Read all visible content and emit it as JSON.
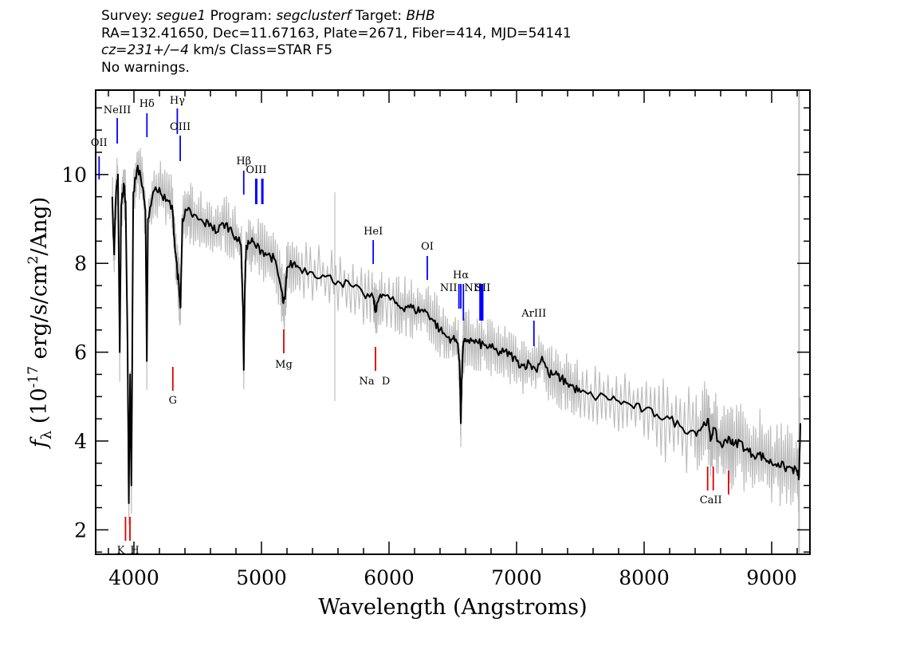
{
  "header": {
    "line1": {
      "survey_label": "Survey: ",
      "survey": "segue1",
      "program_label": " Program: ",
      "program": "segclusterf",
      "target_label": " Target: ",
      "target": "BHB"
    },
    "line2": "RA=132.41650, Dec=11.67163, Plate=2671, Fiber=414, MJD=54141",
    "line3": {
      "cz": "cz=231+/−4",
      "rest": " km/s Class=STAR F5"
    },
    "line4": "No warnings."
  },
  "chart_data": {
    "type": "line",
    "xlabel": "Wavelength (Angstroms)",
    "ylabel": "f_λ (10^-17 erg/s/cm^2/Ang)",
    "xlim": [
      3700,
      9300
    ],
    "ylim": [
      1.45,
      11.9
    ],
    "x_ticks": [
      4000,
      5000,
      6000,
      7000,
      8000,
      9000
    ],
    "y_ticks": [
      2,
      4,
      6,
      8,
      10
    ],
    "colors": {
      "spectrum": "#000000",
      "error_band": "#bdbdbd",
      "emission": "#0000ff",
      "absorption": "#e00000"
    },
    "spectrum": {
      "x": [
        3830,
        3845,
        3860,
        3875,
        3889,
        3900,
        3920,
        3935,
        3950,
        3960,
        3970,
        3980,
        3995,
        4030,
        4070,
        4090,
        4101,
        4110,
        4150,
        4200,
        4250,
        4300,
        4320,
        4340,
        4350,
        4365,
        4380,
        4420,
        4450,
        4500,
        4550,
        4600,
        4650,
        4700,
        4750,
        4800,
        4840,
        4855,
        4861,
        4868,
        4880,
        4920,
        4950,
        5000,
        5050,
        5100,
        5150,
        5172,
        5185,
        5200,
        5250,
        5300,
        5400,
        5500,
        5600,
        5700,
        5800,
        5880,
        5892,
        5905,
        5950,
        6050,
        6100,
        6150,
        6200,
        6250,
        6300,
        6350,
        6400,
        6450,
        6500,
        6540,
        6555,
        6563,
        6570,
        6580,
        6600,
        6650,
        6700,
        6750,
        6800,
        6850,
        6900,
        6950,
        7000,
        7050,
        7100,
        7150,
        7200,
        7250,
        7300,
        7350,
        7400,
        7450,
        7500,
        7600,
        7700,
        7800,
        7900,
        8000,
        8100,
        8200,
        8300,
        8400,
        8450,
        8498,
        8520,
        8542,
        8580,
        8620,
        8662,
        8700,
        8750,
        8800,
        8850,
        8900,
        8950,
        9000,
        9050,
        9100,
        9150,
        9200,
        9215,
        9225
      ],
      "y": [
        9.5,
        8.2,
        9.6,
        10.0,
        6.0,
        9.3,
        9.8,
        9.4,
        6.2,
        2.6,
        5.5,
        3.0,
        9.6,
        10.2,
        9.7,
        9.2,
        5.8,
        9.0,
        9.6,
        9.7,
        9.4,
        9.3,
        8.4,
        7.8,
        7.6,
        7.0,
        9.0,
        9.2,
        9.1,
        9.0,
        8.9,
        8.9,
        8.7,
        8.9,
        8.8,
        8.6,
        8.4,
        7.0,
        5.6,
        7.2,
        8.4,
        8.5,
        8.4,
        8.3,
        8.2,
        8.1,
        7.5,
        7.1,
        7.2,
        7.9,
        8.0,
        7.9,
        7.8,
        7.7,
        7.6,
        7.5,
        7.3,
        7.2,
        6.9,
        7.1,
        7.3,
        7.1,
        7.0,
        7.05,
        6.95,
        6.95,
        6.9,
        6.7,
        6.5,
        6.35,
        6.3,
        6.2,
        5.6,
        4.4,
        5.4,
        6.1,
        6.3,
        6.25,
        6.2,
        6.15,
        6.1,
        6.0,
        6.0,
        5.95,
        5.8,
        5.7,
        5.75,
        5.6,
        5.9,
        5.5,
        5.5,
        5.4,
        5.3,
        5.2,
        5.1,
        5.0,
        5.0,
        4.9,
        4.8,
        4.7,
        4.6,
        4.5,
        4.3,
        4.2,
        4.3,
        4.5,
        4.0,
        4.3,
        4.0,
        3.9,
        4.1,
        3.9,
        4.0,
        3.8,
        3.7,
        3.7,
        3.6,
        3.5,
        3.5,
        3.4,
        3.4,
        3.3,
        3.2,
        4.4
      ]
    },
    "emission_lines": [
      {
        "label": "OII",
        "wave": 3727
      },
      {
        "label": "NeIII",
        "wave": 3869
      },
      {
        "label": "Hδ",
        "wave": 4102
      },
      {
        "label": "Hγ",
        "wave": 4340
      },
      {
        "label": "OIII",
        "wave": 4363
      },
      {
        "label": "Hβ",
        "wave": 4861
      },
      {
        "label": "OIII",
        "wave": 4959
      },
      {
        "label": "",
        "wave": 5007
      },
      {
        "label": "HeI",
        "wave": 5876
      },
      {
        "label": "OI",
        "wave": 6300
      },
      {
        "label": "NII",
        "wave": 6548
      },
      {
        "label": "Hα",
        "wave": 6563
      },
      {
        "label": "NII",
        "wave": 6583
      },
      {
        "label": "SII",
        "wave": 6717
      },
      {
        "label": "",
        "wave": 6731
      },
      {
        "label": "ArIII",
        "wave": 7136
      }
    ],
    "absorption_lines": [
      {
        "label": "K",
        "wave": 3934
      },
      {
        "label": "H",
        "wave": 3969
      },
      {
        "label": "G",
        "wave": 4305
      },
      {
        "label": "Mg",
        "wave": 5175
      },
      {
        "label": "Na",
        "wave": 5894
      },
      {
        "label": "D",
        "wave": 5894
      },
      {
        "label": "CaII",
        "wave": 8498
      },
      {
        "label": "",
        "wave": 8542
      },
      {
        "label": "",
        "wave": 8662
      }
    ]
  }
}
